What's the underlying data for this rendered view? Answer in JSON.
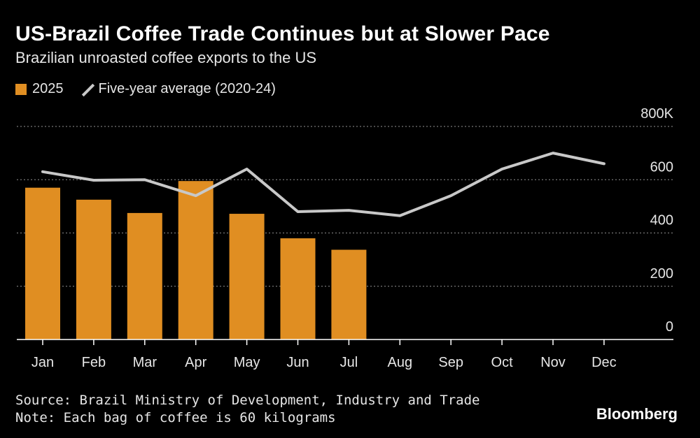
{
  "header": {
    "title": "US-Brazil Coffee Trade Continues but at Slower Pace",
    "subtitle": "Brazilian unroasted coffee exports to the US"
  },
  "legend": {
    "bar_label": "2025",
    "line_label": "Five-year average (2020-24)"
  },
  "colors": {
    "bar": "#e08e22",
    "line": "#c8c8c8",
    "grid": "#777777",
    "axis": "#ffffff"
  },
  "chart_data": {
    "type": "bar",
    "title": "US-Brazil Coffee Trade Continues but at Slower Pace",
    "subtitle": "Brazilian unroasted coffee exports to the US",
    "categories": [
      "Jan",
      "Feb",
      "Mar",
      "Apr",
      "May",
      "Jun",
      "Jul",
      "Aug",
      "Sep",
      "Oct",
      "Nov",
      "Dec"
    ],
    "series": [
      {
        "name": "2025",
        "kind": "bar",
        "values": [
          570,
          525,
          475,
          595,
          472,
          380,
          337,
          null,
          null,
          null,
          null,
          null
        ]
      },
      {
        "name": "Five-year average (2020-24)",
        "kind": "line",
        "values": [
          630,
          598,
          600,
          540,
          640,
          480,
          485,
          465,
          540,
          640,
          700,
          660
        ]
      }
    ],
    "ylim": [
      0,
      800
    ],
    "yticks": [
      0,
      200,
      400,
      600
    ],
    "ytick_labels": [
      "0",
      "200",
      "400",
      "600"
    ],
    "ytop_label": "800K",
    "xlabel": "",
    "ylabel": "",
    "grid": true,
    "y_axis_position": "right"
  },
  "footer": {
    "source": "Source: Brazil Ministry of Development, Industry and Trade",
    "note": "Note: Each bag of coffee is 60 kilograms",
    "brand": "Bloomberg"
  }
}
